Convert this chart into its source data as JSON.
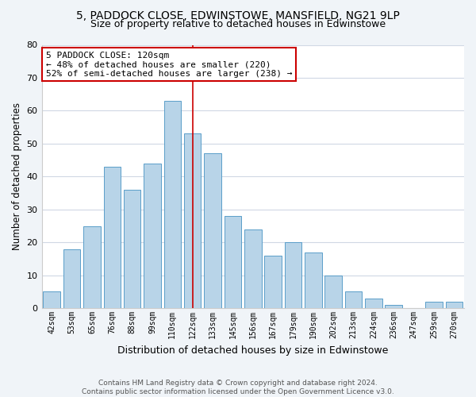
{
  "title1": "5, PADDOCK CLOSE, EDWINSTOWE, MANSFIELD, NG21 9LP",
  "title2": "Size of property relative to detached houses in Edwinstowe",
  "xlabel": "Distribution of detached houses by size in Edwinstowe",
  "ylabel": "Number of detached properties",
  "categories": [
    "42sqm",
    "53sqm",
    "65sqm",
    "76sqm",
    "88sqm",
    "99sqm",
    "110sqm",
    "122sqm",
    "133sqm",
    "145sqm",
    "156sqm",
    "167sqm",
    "179sqm",
    "190sqm",
    "202sqm",
    "213sqm",
    "224sqm",
    "236sqm",
    "247sqm",
    "259sqm",
    "270sqm"
  ],
  "values": [
    5,
    18,
    25,
    43,
    36,
    44,
    63,
    53,
    47,
    28,
    24,
    16,
    20,
    17,
    10,
    5,
    3,
    1,
    0,
    2,
    2
  ],
  "bar_color": "#b8d4e8",
  "bar_edge_color": "#5a9ec9",
  "highlight_index": 7,
  "highlight_line_color": "#cc0000",
  "annotation_line1": "5 PADDOCK CLOSE: 120sqm",
  "annotation_line2": "← 48% of detached houses are smaller (220)",
  "annotation_line3": "52% of semi-detached houses are larger (238) →",
  "annotation_box_color": "#ffffff",
  "annotation_box_edge": "#cc0000",
  "ylim": [
    0,
    80
  ],
  "yticks": [
    0,
    10,
    20,
    30,
    40,
    50,
    60,
    70,
    80
  ],
  "footer1": "Contains HM Land Registry data © Crown copyright and database right 2024.",
  "footer2": "Contains public sector information licensed under the Open Government Licence v3.0.",
  "bg_color": "#f0f4f8",
  "plot_bg_color": "#ffffff",
  "grid_color": "#d0d8e4"
}
